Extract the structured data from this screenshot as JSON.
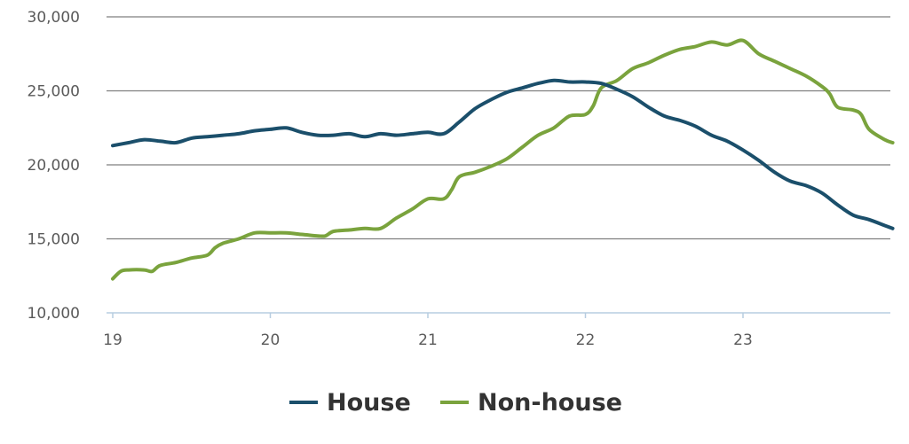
{
  "chart_data": {
    "type": "line",
    "title": "",
    "xlabel": "",
    "ylabel": "",
    "x_ticks": [
      {
        "value": 19,
        "label": "19"
      },
      {
        "value": 20,
        "label": "20"
      },
      {
        "value": 21,
        "label": "21"
      },
      {
        "value": 22,
        "label": "22"
      },
      {
        "value": 23,
        "label": "23"
      }
    ],
    "y_ticks": [
      {
        "value": 10000,
        "label": "10,000"
      },
      {
        "value": 15000,
        "label": "15,000"
      },
      {
        "value": 20000,
        "label": "20,000"
      },
      {
        "value": 25000,
        "label": "25,000"
      },
      {
        "value": 30000,
        "label": "30,000"
      }
    ],
    "xlim": [
      19,
      23.95
    ],
    "ylim": [
      10000,
      30000
    ],
    "grid": true,
    "legend_position": "bottom-center",
    "series": [
      {
        "name": "House",
        "color": "#1b4f6b",
        "points": [
          [
            19.0,
            21300
          ],
          [
            19.1,
            21500
          ],
          [
            19.2,
            21700
          ],
          [
            19.3,
            21600
          ],
          [
            19.4,
            21500
          ],
          [
            19.5,
            21800
          ],
          [
            19.6,
            21900
          ],
          [
            19.7,
            22000
          ],
          [
            19.8,
            22100
          ],
          [
            19.9,
            22300
          ],
          [
            20.0,
            22400
          ],
          [
            20.1,
            22500
          ],
          [
            20.2,
            22200
          ],
          [
            20.3,
            22000
          ],
          [
            20.4,
            22000
          ],
          [
            20.5,
            22100
          ],
          [
            20.6,
            21900
          ],
          [
            20.7,
            22100
          ],
          [
            20.8,
            22000
          ],
          [
            20.9,
            22100
          ],
          [
            21.0,
            22200
          ],
          [
            21.1,
            22100
          ],
          [
            21.2,
            22900
          ],
          [
            21.3,
            23800
          ],
          [
            21.4,
            24400
          ],
          [
            21.5,
            24900
          ],
          [
            21.6,
            25200
          ],
          [
            21.7,
            25500
          ],
          [
            21.8,
            25700
          ],
          [
            21.9,
            25600
          ],
          [
            22.0,
            25600
          ],
          [
            22.1,
            25500
          ],
          [
            22.2,
            25100
          ],
          [
            22.3,
            24600
          ],
          [
            22.4,
            23900
          ],
          [
            22.5,
            23300
          ],
          [
            22.6,
            23000
          ],
          [
            22.7,
            22600
          ],
          [
            22.8,
            22000
          ],
          [
            22.9,
            21600
          ],
          [
            23.0,
            21000
          ],
          [
            23.1,
            20300
          ],
          [
            23.2,
            19500
          ],
          [
            23.3,
            18900
          ],
          [
            23.4,
            18600
          ],
          [
            23.5,
            18100
          ],
          [
            23.6,
            17300
          ],
          [
            23.7,
            16600
          ],
          [
            23.8,
            16300
          ],
          [
            23.9,
            15900
          ],
          [
            23.95,
            15700
          ]
        ]
      },
      {
        "name": "Non-house",
        "color": "#7aa33d",
        "points": [
          [
            19.0,
            12300
          ],
          [
            19.05,
            12800
          ],
          [
            19.1,
            12900
          ],
          [
            19.2,
            12900
          ],
          [
            19.25,
            12800
          ],
          [
            19.3,
            13200
          ],
          [
            19.4,
            13400
          ],
          [
            19.5,
            13700
          ],
          [
            19.6,
            13900
          ],
          [
            19.65,
            14400
          ],
          [
            19.7,
            14700
          ],
          [
            19.8,
            15000
          ],
          [
            19.9,
            15400
          ],
          [
            20.0,
            15400
          ],
          [
            20.1,
            15400
          ],
          [
            20.2,
            15300
          ],
          [
            20.3,
            15200
          ],
          [
            20.35,
            15200
          ],
          [
            20.4,
            15500
          ],
          [
            20.5,
            15600
          ],
          [
            20.6,
            15700
          ],
          [
            20.7,
            15700
          ],
          [
            20.8,
            16400
          ],
          [
            20.9,
            17000
          ],
          [
            21.0,
            17700
          ],
          [
            21.1,
            17700
          ],
          [
            21.15,
            18300
          ],
          [
            21.2,
            19200
          ],
          [
            21.3,
            19500
          ],
          [
            21.4,
            19900
          ],
          [
            21.5,
            20400
          ],
          [
            21.6,
            21200
          ],
          [
            21.7,
            22000
          ],
          [
            21.8,
            22500
          ],
          [
            21.9,
            23300
          ],
          [
            22.0,
            23400
          ],
          [
            22.05,
            24000
          ],
          [
            22.1,
            25200
          ],
          [
            22.2,
            25700
          ],
          [
            22.3,
            26500
          ],
          [
            22.4,
            26900
          ],
          [
            22.5,
            27400
          ],
          [
            22.6,
            27800
          ],
          [
            22.7,
            28000
          ],
          [
            22.8,
            28300
          ],
          [
            22.9,
            28100
          ],
          [
            23.0,
            28400
          ],
          [
            23.1,
            27500
          ],
          [
            23.2,
            27000
          ],
          [
            23.3,
            26500
          ],
          [
            23.4,
            26000
          ],
          [
            23.5,
            25300
          ],
          [
            23.55,
            24800
          ],
          [
            23.6,
            23900
          ],
          [
            23.7,
            23700
          ],
          [
            23.75,
            23400
          ],
          [
            23.8,
            22400
          ],
          [
            23.9,
            21700
          ],
          [
            23.95,
            21500
          ]
        ]
      }
    ]
  }
}
